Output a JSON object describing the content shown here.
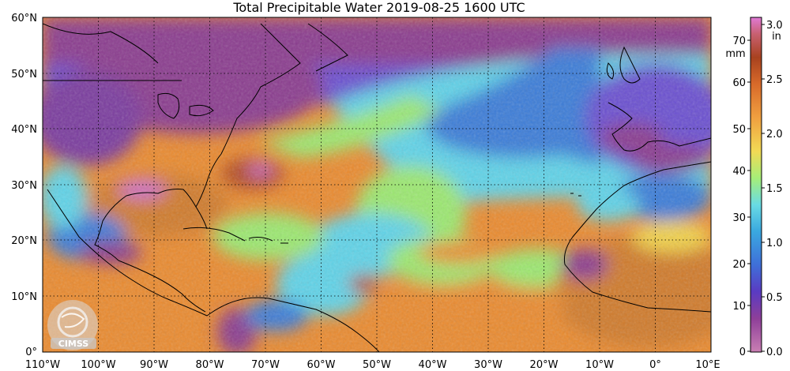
{
  "title": "Total Precipitable Water  2019-08-25 1600 UTC",
  "latitudes": [
    "60°N",
    "50°N",
    "40°N",
    "30°N",
    "20°N",
    "10°N",
    "0°"
  ],
  "longitudes": [
    "110°W",
    "100°W",
    "90°W",
    "80°W",
    "70°W",
    "60°W",
    "50°W",
    "40°W",
    "30°W",
    "20°W",
    "10°W",
    "0°",
    "10°E"
  ],
  "colorbar": {
    "mm_unit": "mm",
    "in_unit": "in",
    "mm_ticks": [
      "70",
      "60",
      "50",
      "40",
      "30",
      "20",
      "10",
      "0"
    ],
    "in_ticks": [
      "3.0",
      "2.5",
      "2.0",
      "1.5",
      "1.0",
      "0.5",
      "0.0"
    ]
  },
  "logo_text": "CIMSS",
  "colors": {
    "very_dry": "#8a3a8e",
    "dry": "#6a4fd0",
    "blue": "#3a7bd8",
    "cyan": "#5fd3e8",
    "green": "#9be870",
    "yellow": "#f2d24a",
    "orange": "#ea8a2e",
    "brown": "#b04a24",
    "pink": "#d070c8",
    "coast": "#000000",
    "grid": "#000000"
  }
}
